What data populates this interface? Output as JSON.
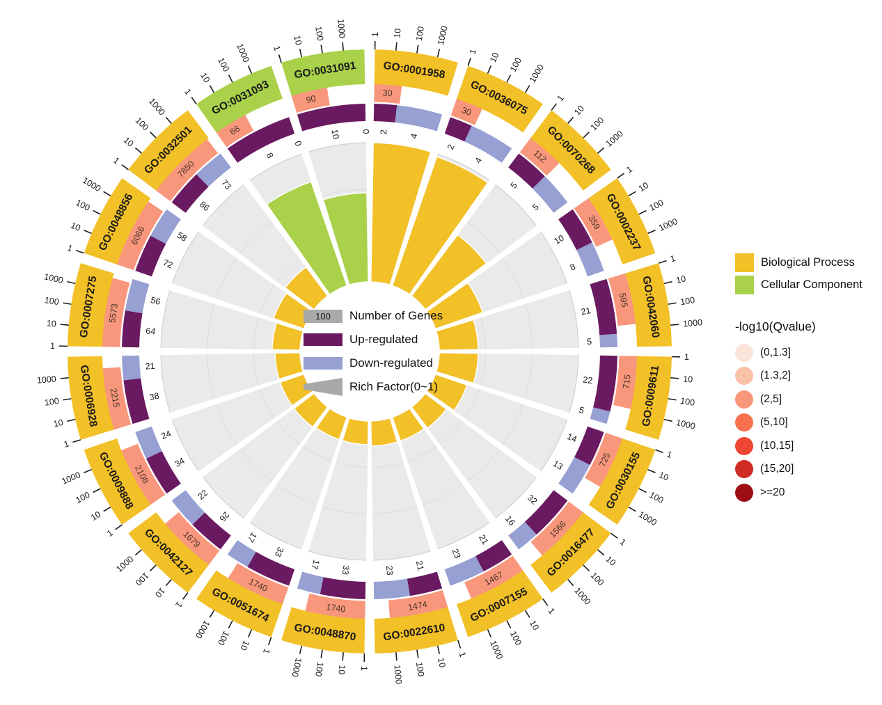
{
  "chart_data": {
    "type": "circular_go_enrichment",
    "layout": "circos-style GO enrichment circle plot, 20 sectors clockwise from 12 o'clock",
    "axis": {
      "tick_labels": [
        "1",
        "10",
        "100",
        "1000"
      ],
      "decades": 4,
      "scale": "log10"
    },
    "rings": [
      "go-term-band",
      "gene-count-box",
      "up-down-regulated-band",
      "rich-factor-bar"
    ],
    "colors": {
      "biological_process": "#F2C027",
      "cellular_component": "#A9D14A",
      "gene_count_box": "#F8977C",
      "up_regulated": "#6A1A61",
      "down_regulated": "#96A0D2",
      "wedge_background": "#EAEAEA",
      "wedge_outline": "#D3D3D3",
      "gridline": "#DCDCDC",
      "count_text": "#4A352C",
      "text": "#1a1a1a"
    },
    "terms": [
      {
        "id": "GO:0001958",
        "category": "BP",
        "gene_count": 30,
        "up": 2,
        "down": 4,
        "rich_factor": 1.0
      },
      {
        "id": "GO:0036075",
        "category": "BP",
        "gene_count": 30,
        "up": 2,
        "down": 4,
        "rich_factor": 0.98
      },
      {
        "id": "GO:0070268",
        "category": "BP",
        "gene_count": 112,
        "up": 5,
        "down": 5,
        "rich_factor": 0.55
      },
      {
        "id": "GO:0002237",
        "category": "BP",
        "gene_count": 359,
        "up": 10,
        "down": 8,
        "rich_factor": 0.36
      },
      {
        "id": "GO:0042060",
        "category": "BP",
        "gene_count": 595,
        "up": 21,
        "down": 5,
        "rich_factor": 0.28
      },
      {
        "id": "GO:0009611",
        "category": "BP",
        "gene_count": 715,
        "up": 22,
        "down": 5,
        "rich_factor": 0.28
      },
      {
        "id": "GO:0030155",
        "category": "BP",
        "gene_count": 725,
        "up": 14,
        "down": 13,
        "rich_factor": 0.24
      },
      {
        "id": "GO:0016477",
        "category": "BP",
        "gene_count": 1566,
        "up": 32,
        "down": 16,
        "rich_factor": 0.19
      },
      {
        "id": "GO:0007155",
        "category": "BP",
        "gene_count": 1467,
        "up": 21,
        "down": 23,
        "rich_factor": 0.18
      },
      {
        "id": "GO:0022610",
        "category": "BP",
        "gene_count": 1474,
        "up": 21,
        "down": 23,
        "rich_factor": 0.18
      },
      {
        "id": "GO:0048870",
        "category": "BP",
        "gene_count": 1740,
        "up": 33,
        "down": 17,
        "rich_factor": 0.17
      },
      {
        "id": "GO:0051674",
        "category": "BP",
        "gene_count": 1740,
        "up": 33,
        "down": 17,
        "rich_factor": 0.17
      },
      {
        "id": "GO:0042127",
        "category": "BP",
        "gene_count": 1679,
        "up": 26,
        "down": 22,
        "rich_factor": 0.18
      },
      {
        "id": "GO:0009888",
        "category": "BP",
        "gene_count": 2108,
        "up": 34,
        "down": 24,
        "rich_factor": 0.18
      },
      {
        "id": "GO:0006928",
        "category": "BP",
        "gene_count": 2215,
        "up": 38,
        "down": 21,
        "rich_factor": 0.18
      },
      {
        "id": "GO:0007275",
        "category": "BP",
        "gene_count": 5573,
        "up": 64,
        "down": 56,
        "rich_factor": 0.2
      },
      {
        "id": "GO:0048856",
        "category": "BP",
        "gene_count": 6066,
        "up": 72,
        "down": 58,
        "rich_factor": 0.23
      },
      {
        "id": "GO:0032501",
        "category": "BP",
        "gene_count": 7850,
        "up": 86,
        "down": 73,
        "rich_factor": 0.26
      },
      {
        "id": "GO:0031093",
        "category": "CC",
        "gene_count": 66,
        "up": 8,
        "down": 0,
        "rich_factor": 0.79
      },
      {
        "id": "GO:0031091",
        "category": "CC",
        "gene_count": 90,
        "up": 10,
        "down": 0,
        "rich_factor": 0.64
      }
    ]
  },
  "inner_legend": {
    "genes_value": "100",
    "genes_label": "Number of Genes",
    "up_label": "Up-regulated",
    "down_label": "Down-regulated",
    "rich_label": "Rich Factor(0~1)"
  },
  "right_legend": {
    "bp_label": "Biological Process",
    "cc_label": "Cellular Component",
    "qvalue_title": "-log10(Qvalue)",
    "qvalue_bins": [
      {
        "label": "(0,1.3]",
        "color": "#FBE4DA"
      },
      {
        "label": "(1.3,2]",
        "color": "#F9C2A8"
      },
      {
        "label": "(2,5]",
        "color": "#F8977C"
      },
      {
        "label": "(5,10]",
        "color": "#F7714E"
      },
      {
        "label": "(10,15]",
        "color": "#EF4634"
      },
      {
        "label": "(15,20]",
        "color": "#D02B24"
      },
      {
        "label": ">=20",
        "color": "#9C0D15"
      }
    ]
  }
}
